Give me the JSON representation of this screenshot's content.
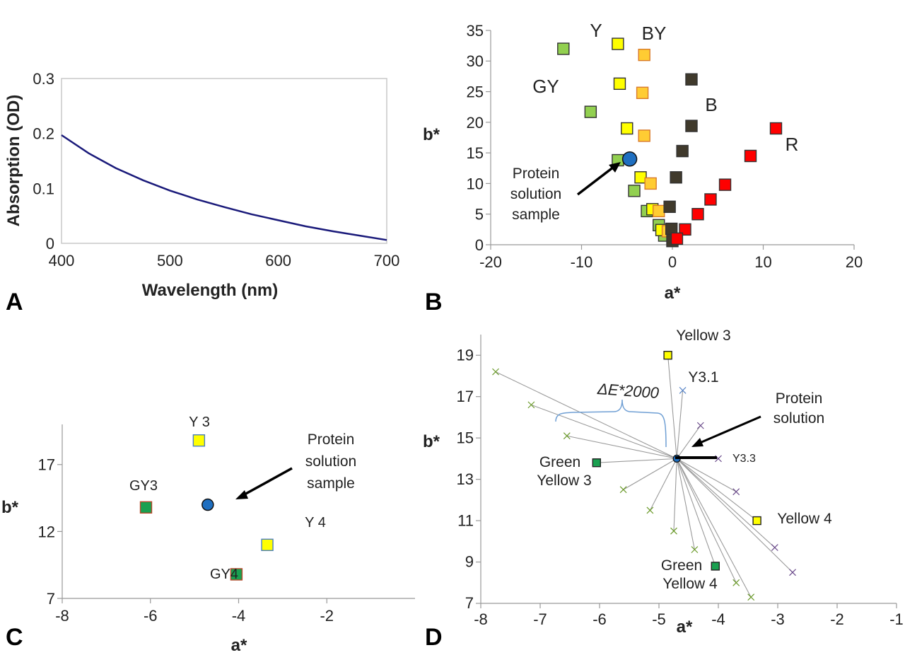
{
  "panels": {
    "a": "A",
    "b": "B",
    "c": "C",
    "d": "D"
  },
  "colors": {
    "curve": "#1a1a7a",
    "yellow": "#ffff00",
    "green_yellow": "#92d050",
    "orange_yellow": "#ffcc33",
    "brown": "#403a2c",
    "red": "#ff0000",
    "protein": "#1f6fc0",
    "green": "#1aa050"
  },
  "chart_data": [
    {
      "type": "line",
      "panel": "A",
      "xlabel": "Wavelength (nm)",
      "ylabel": "Absorption (OD)",
      "xlim": [
        400,
        700
      ],
      "ylim": [
        0,
        0.3
      ],
      "x_ticks": [
        "400",
        "500",
        "600",
        "700"
      ],
      "y_ticks": [
        "0",
        "0.1",
        "0.2",
        "0.3"
      ],
      "series": [
        {
          "x": [
            400,
            425,
            450,
            475,
            500,
            525,
            550,
            575,
            600,
            625,
            650,
            675,
            700
          ],
          "y": [
            0.197,
            0.164,
            0.137,
            0.115,
            0.096,
            0.08,
            0.066,
            0.053,
            0.042,
            0.031,
            0.022,
            0.014,
            0.006
          ]
        }
      ]
    },
    {
      "type": "scatter",
      "panel": "B",
      "xlabel": "a*",
      "ylabel": "b*",
      "xlim": [
        -20,
        20
      ],
      "ylim": [
        0,
        35
      ],
      "x_ticks": [
        "-20",
        "-10",
        "0",
        "10",
        "20"
      ],
      "y_ticks": [
        "0",
        "5",
        "10",
        "15",
        "20",
        "25",
        "30",
        "35"
      ],
      "series": [
        {
          "group": "GY",
          "color": "#92d050",
          "points": [
            [
              -12,
              32
            ],
            [
              -9,
              21.7
            ],
            [
              -6,
              13.8
            ],
            [
              -4.2,
              8.8
            ],
            [
              -2.8,
              5.5
            ],
            [
              -1.5,
              3.2
            ],
            [
              -0.9,
              1.5
            ]
          ]
        },
        {
          "group": "Y",
          "color": "#ffff00",
          "points": [
            [
              -6,
              32.8
            ],
            [
              -5.8,
              26.3
            ],
            [
              -5,
              19
            ],
            [
              -3.5,
              11
            ],
            [
              -2.2,
              5.8
            ],
            [
              -1.2,
              2.4
            ]
          ]
        },
        {
          "group": "BY",
          "color": "#ffcc33",
          "points": [
            [
              -3.1,
              31
            ],
            [
              -3.3,
              24.8
            ],
            [
              -3.1,
              17.8
            ],
            [
              -2.4,
              10
            ],
            [
              -1.5,
              5.5
            ],
            [
              -0.5,
              2.2
            ]
          ]
        },
        {
          "group": "B",
          "color": "#403a2c",
          "points": [
            [
              2.1,
              27
            ],
            [
              2.1,
              19.4
            ],
            [
              1.1,
              15.3
            ],
            [
              0.4,
              11
            ],
            [
              -0.3,
              6.2
            ],
            [
              -0.1,
              2.6
            ],
            [
              0,
              0.6
            ]
          ]
        },
        {
          "group": "R",
          "color": "#ff0000",
          "points": [
            [
              11.4,
              19
            ],
            [
              8.6,
              14.5
            ],
            [
              5.8,
              9.8
            ],
            [
              4.2,
              7.4
            ],
            [
              2.8,
              5
            ],
            [
              1.4,
              2.5
            ],
            [
              0.5,
              1
            ]
          ]
        }
      ],
      "sample": {
        "x": -4.7,
        "y": 14,
        "color": "#1f6fc0"
      },
      "group_labels": [
        "Y",
        "BY",
        "GY",
        "B",
        "R"
      ],
      "annotation": [
        "Protein",
        "solution",
        "sample"
      ]
    },
    {
      "type": "scatter",
      "panel": "C",
      "xlabel": "a*",
      "ylabel": "b*",
      "xlim": [
        -8,
        0
      ],
      "ylim": [
        7,
        20
      ],
      "x_ticks": [
        "-8",
        "-6",
        "-4",
        "-2"
      ],
      "y_ticks": [
        "7",
        "12",
        "17"
      ],
      "points": [
        {
          "label": "Y 3",
          "x": -4.9,
          "y": 18.8,
          "color": "#ffff00"
        },
        {
          "label": "GY3",
          "x": -6.1,
          "y": 13.8,
          "color": "#1aa050"
        },
        {
          "label": "Y 4",
          "x": -3.35,
          "y": 11,
          "color": "#ffff00"
        },
        {
          "label": "GY4",
          "x": -4.05,
          "y": 8.8,
          "color": "#1aa050"
        }
      ],
      "sample": {
        "x": -4.7,
        "y": 14,
        "color": "#1f6fc0"
      },
      "annotation": [
        "Protein",
        "solution",
        "sample"
      ]
    },
    {
      "type": "scatter",
      "panel": "D",
      "xlabel": "a*",
      "ylabel": "b*",
      "xlim": [
        -8,
        -1
      ],
      "ylim": [
        7,
        20
      ],
      "x_ticks": [
        "-8",
        "-7",
        "-6",
        "-5",
        "-4",
        "-3",
        "-2",
        "-1"
      ],
      "y_ticks": [
        "7",
        "9",
        "11",
        "13",
        "15",
        "17",
        "19"
      ],
      "center": {
        "x": -4.7,
        "y": 14,
        "color": "#1f6fc0"
      },
      "squares": [
        {
          "label": [
            "Yellow 3"
          ],
          "x": -4.85,
          "y": 19,
          "color": "#ffff00"
        },
        {
          "label": [
            "Green",
            "Yellow 3"
          ],
          "x": -6.05,
          "y": 13.8,
          "color": "#1aa050"
        },
        {
          "label": [
            "Yellow 4"
          ],
          "x": -3.35,
          "y": 11,
          "color": "#ffff00"
        },
        {
          "label": [
            "Green",
            "Yellow 4"
          ],
          "x": -4.05,
          "y": 8.8,
          "color": "#1aa050"
        }
      ],
      "crosses_green": [
        [
          -7.75,
          18.2
        ],
        [
          -7.15,
          16.6
        ],
        [
          -6.55,
          15.1
        ],
        [
          -5.6,
          12.5
        ],
        [
          -5.15,
          11.5
        ],
        [
          -4.75,
          10.5
        ],
        [
          -4.4,
          9.6
        ],
        [
          -3.7,
          8
        ],
        [
          -3.45,
          7.3
        ]
      ],
      "crosses_blue": [
        [
          -4.6,
          17.3
        ]
      ],
      "crosses_purple": [
        [
          -4.3,
          15.6
        ],
        [
          -4,
          14
        ],
        [
          -3.7,
          12.4
        ],
        [
          -3.05,
          9.7
        ],
        [
          -2.75,
          8.5
        ]
      ],
      "labels": {
        "y31": "Y3.1",
        "y33": "Y3.3",
        "delta": "ΔE*2000",
        "protein": [
          "Protein",
          "solution"
        ]
      }
    }
  ]
}
